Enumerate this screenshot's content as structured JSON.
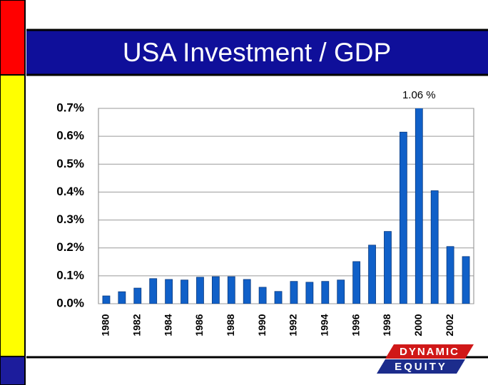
{
  "chart_data": {
    "type": "bar",
    "title": "USA Investment / GDP",
    "categories": [
      "1980",
      null,
      "1982",
      null,
      "1984",
      null,
      "1986",
      null,
      "1988",
      null,
      "1990",
      null,
      "1992",
      null,
      "1994",
      null,
      "1996",
      null,
      "1998",
      null,
      "2000",
      null,
      "2002",
      null
    ],
    "values": [
      0.028,
      0.043,
      0.056,
      0.09,
      0.087,
      0.085,
      0.095,
      0.097,
      0.097,
      0.087,
      0.059,
      0.044,
      0.08,
      0.077,
      0.08,
      0.085,
      0.151,
      0.21,
      0.259,
      0.615,
      1.06,
      0.405,
      0.205,
      0.169
    ],
    "value_labels": [
      null,
      null,
      null,
      null,
      null,
      null,
      null,
      null,
      null,
      null,
      null,
      null,
      null,
      null,
      null,
      null,
      null,
      null,
      null,
      null,
      "1.06 %",
      null,
      null,
      null
    ],
    "color": "#1060c8",
    "ylim": [
      0,
      0.7
    ],
    "yticks": [
      {
        "value": 0,
        "label": "0.0%"
      },
      {
        "value": 0.1,
        "label": "0.1%"
      },
      {
        "value": 0.2,
        "label": "0.2%"
      },
      {
        "value": 0.3,
        "label": "0.3%"
      },
      {
        "value": 0.4,
        "label": "0.4%"
      },
      {
        "value": 0.5,
        "label": "0.5%"
      },
      {
        "value": 0.6,
        "label": "0.6%"
      },
      {
        "value": 0.7,
        "label": "0.7%"
      }
    ],
    "grid": true
  },
  "logo": {
    "line1": "DYNAMIC",
    "line2": "EQUITY"
  }
}
